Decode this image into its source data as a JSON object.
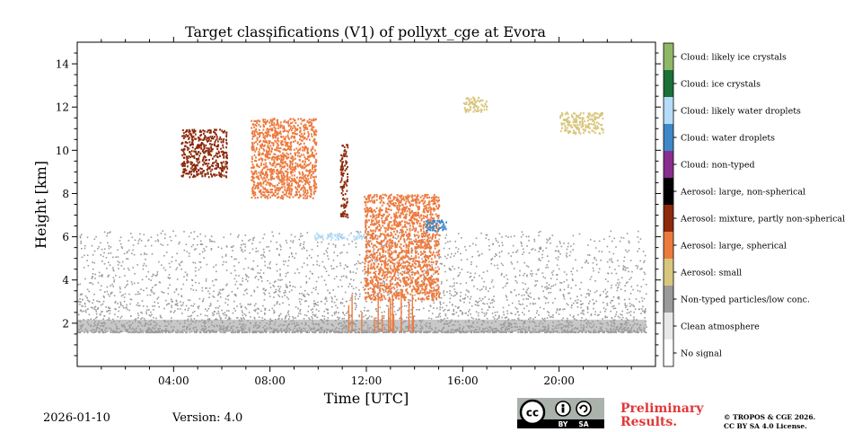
{
  "chart_data": {
    "type": "heatmap",
    "title": "Target classifications (V1) of pollyxt_cge at Evora",
    "xlabel": "Time [UTC]",
    "ylabel": "Height [km]",
    "xlim": [
      0,
      24
    ],
    "ylim": [
      0,
      15
    ],
    "x_ticks": [
      {
        "value": 4,
        "label": "04:00"
      },
      {
        "value": 8,
        "label": "08:00"
      },
      {
        "value": 12,
        "label": "12:00"
      },
      {
        "value": 16,
        "label": "16:00"
      },
      {
        "value": 20,
        "label": "20:00"
      }
    ],
    "y_ticks": [
      {
        "value": 2,
        "label": "2"
      },
      {
        "value": 4,
        "label": "4"
      },
      {
        "value": 6,
        "label": "6"
      },
      {
        "value": 8,
        "label": "8"
      },
      {
        "value": 10,
        "label": "10"
      },
      {
        "value": 12,
        "label": "12"
      },
      {
        "value": 14,
        "label": "14"
      }
    ],
    "classes": [
      {
        "code": 11,
        "label": "Cloud: likely ice crystals",
        "color": "#8fb866"
      },
      {
        "code": 10,
        "label": "Cloud: ice crystals",
        "color": "#1b7037"
      },
      {
        "code": 9,
        "label": "Cloud: likely water droplets",
        "color": "#b5dcf8"
      },
      {
        "code": 8,
        "label": "Cloud: water droplets",
        "color": "#3e88c8"
      },
      {
        "code": 7,
        "label": "Cloud: non-typed",
        "color": "#8a2d8e"
      },
      {
        "code": 6,
        "label": "Aerosol: large, non-spherical",
        "color": "#000000"
      },
      {
        "code": 5,
        "label": "Aerosol: mixture, partly non-spherical",
        "color": "#8d2a0c"
      },
      {
        "code": 4,
        "label": "Aerosol: large, spherical",
        "color": "#ec7a3e"
      },
      {
        "code": 3,
        "label": "Aerosol: small",
        "color": "#d8c67c"
      },
      {
        "code": 2,
        "label": "Non-typed particles/low conc.",
        "color": "#9a9a9a"
      },
      {
        "code": 1,
        "label": "Clean atmosphere",
        "color": "#e8e8e8"
      },
      {
        "code": 0,
        "label": "No signal",
        "color": "#ffffff"
      }
    ],
    "features": [
      {
        "class": 2,
        "x": [
          0.0,
          23.6
        ],
        "y": [
          1.6,
          6.3
        ],
        "note": "non-typed particle layer, denser below 4 km"
      },
      {
        "class": 5,
        "x": [
          4.3,
          6.2
        ],
        "y": [
          8.8,
          11.0
        ],
        "note": "aerosol/cloud filaments"
      },
      {
        "class": 4,
        "x": [
          7.2,
          9.9
        ],
        "y": [
          7.8,
          11.5
        ]
      },
      {
        "class": 5,
        "x": [
          10.9,
          11.2
        ],
        "y": [
          6.9,
          10.3
        ]
      },
      {
        "class": 4,
        "x": [
          11.9,
          15.0
        ],
        "y": [
          3.1,
          8.0
        ],
        "note": "descending layer"
      },
      {
        "class": 9,
        "x": [
          9.8,
          12.0
        ],
        "y": [
          5.9,
          6.2
        ]
      },
      {
        "class": 8,
        "x": [
          14.4,
          15.3
        ],
        "y": [
          6.3,
          6.8
        ]
      },
      {
        "class": 3,
        "x": [
          16.0,
          17.0
        ],
        "y": [
          11.8,
          12.5
        ]
      },
      {
        "class": 3,
        "x": [
          20.0,
          21.8
        ],
        "y": [
          10.8,
          11.8
        ]
      },
      {
        "class": 4,
        "x": [
          11.0,
          14.0
        ],
        "y": [
          1.6,
          3.5
        ],
        "note": "vertical streaks near surface"
      }
    ]
  },
  "footer": {
    "date": "2026-01-10",
    "version": "Version: 4.0",
    "preliminary_line1": "Preliminary",
    "preliminary_line2": "Results.",
    "copyright_line1": "© TROPOS & CGE 2026.",
    "copyright_line2": "CC BY SA 4.0 License.",
    "license_badge": {
      "cc": "cc",
      "by": "BY",
      "sa": "SA"
    }
  }
}
